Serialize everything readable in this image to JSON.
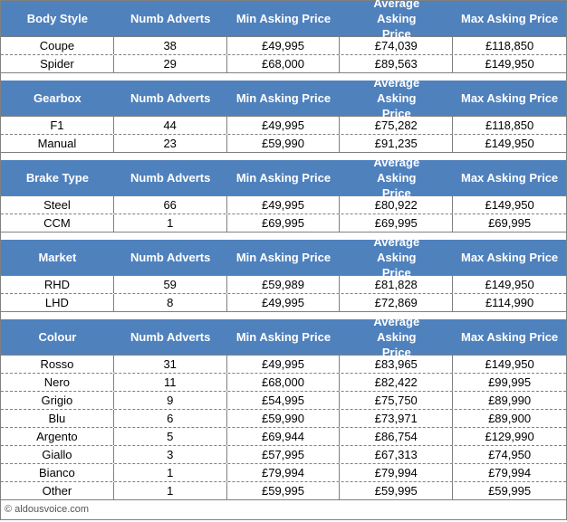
{
  "colors": {
    "header_bg": "#4f81bd",
    "header_text": "#ffffff",
    "border": "#808080"
  },
  "columns": [
    "Numb Adverts",
    "Min Asking Price",
    "Average Asking Price",
    "Max Asking Price"
  ],
  "tables": [
    {
      "title": "Body Style",
      "rows": [
        [
          "Coupe",
          "38",
          "£49,995",
          "£74,039",
          "£118,850"
        ],
        [
          "Spider",
          "29",
          "£68,000",
          "£89,563",
          "£149,950"
        ]
      ]
    },
    {
      "title": "Gearbox",
      "rows": [
        [
          "F1",
          "44",
          "£49,995",
          "£75,282",
          "£118,850"
        ],
        [
          "Manual",
          "23",
          "£59,990",
          "£91,235",
          "£149,950"
        ]
      ]
    },
    {
      "title": "Brake Type",
      "rows": [
        [
          "Steel",
          "66",
          "£49,995",
          "£80,922",
          "£149,950"
        ],
        [
          "CCM",
          "1",
          "£69,995",
          "£69,995",
          "£69,995"
        ]
      ]
    },
    {
      "title": "Market",
      "rows": [
        [
          "RHD",
          "59",
          "£59,989",
          "£81,828",
          "£149,950"
        ],
        [
          "LHD",
          "8",
          "£49,995",
          "£72,869",
          "£114,990"
        ]
      ]
    },
    {
      "title": "Colour",
      "rows": [
        [
          "Rosso",
          "31",
          "£49,995",
          "£83,965",
          "£149,950"
        ],
        [
          "Nero",
          "11",
          "£68,000",
          "£82,422",
          "£99,995"
        ],
        [
          "Grigio",
          "9",
          "£54,995",
          "£75,750",
          "£89,990"
        ],
        [
          "Blu",
          "6",
          "£59,990",
          "£73,971",
          "£89,900"
        ],
        [
          "Argento",
          "5",
          "£69,944",
          "£86,754",
          "£129,990"
        ],
        [
          "Giallo",
          "3",
          "£57,995",
          "£67,313",
          "£74,950"
        ],
        [
          "Bianco",
          "1",
          "£79,994",
          "£79,994",
          "£79,994"
        ],
        [
          "Other",
          "1",
          "£59,995",
          "£59,995",
          "£59,995"
        ]
      ]
    }
  ],
  "footer": "© aldousvoice.com"
}
